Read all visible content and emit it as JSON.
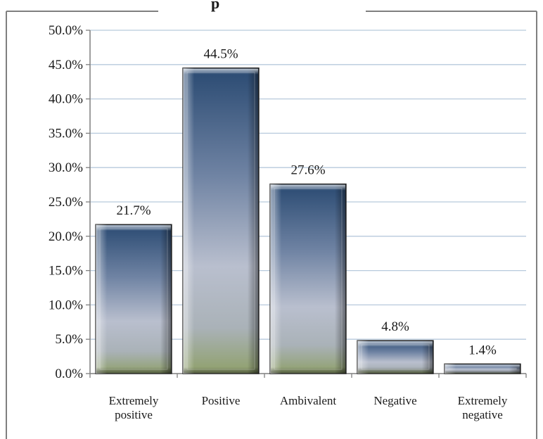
{
  "chart_data": {
    "type": "bar",
    "title_fragment": "p",
    "categories": [
      [
        "Extremely",
        "positive"
      ],
      [
        "Positive"
      ],
      [
        "Ambivalent"
      ],
      [
        "Negative"
      ],
      [
        "Extremely",
        "negative"
      ]
    ],
    "values": [
      21.7,
      44.5,
      27.6,
      4.8,
      1.4
    ],
    "value_labels": [
      "21.7%",
      "44.5%",
      "27.6%",
      "4.8%",
      "1.4%"
    ],
    "ylim": [
      0,
      50
    ],
    "yticks": [
      0,
      5,
      10,
      15,
      20,
      25,
      30,
      35,
      40,
      45,
      50
    ],
    "ytick_labels": [
      "0.0%",
      "5.0%",
      "10.0%",
      "15.0%",
      "20.0%",
      "25.0%",
      "30.0%",
      "35.0%",
      "40.0%",
      "45.0%",
      "50.0%"
    ],
    "grid": true,
    "legend": "none",
    "colors": {
      "grid": "#b7c9dc",
      "bar_top": "#2a4a72",
      "bar_mid": "#b9bfce",
      "bar_bottom": "#8fa06a",
      "axis": "#7f7f7f",
      "border": "#7f7f7f"
    }
  }
}
